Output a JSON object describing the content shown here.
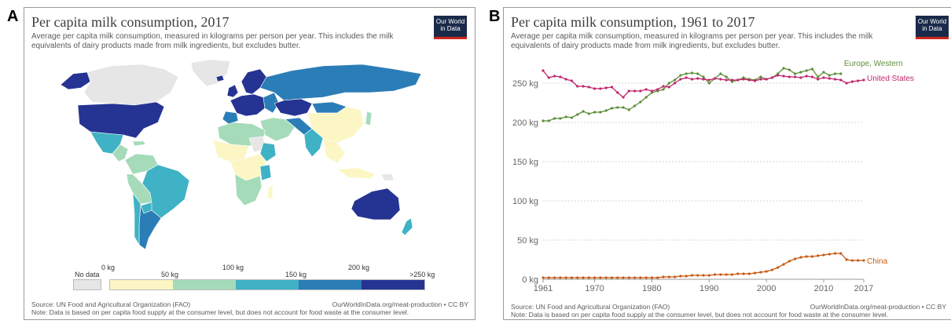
{
  "panel_a": {
    "letter": "A",
    "title": "Per capita milk consumption, 2017",
    "subtitle": "Average per capita milk consumption, measured in kilograms per person per year. This includes the milk equivalents of dairy products made from milk ingredients, but excludes butter.",
    "logo_line1": "Our World",
    "logo_line2": "in Data",
    "source": "Source: UN Food and Agricultural Organization (FAO)",
    "url": "OurWorldInData.org/meat-production • CC BY",
    "note": "Note: Data is based on per capita food supply at the consumer level, but does not account for food waste at the consumer level.",
    "legend": {
      "no_data_label": "No data",
      "bins_top": [
        "0 kg",
        "100 kg",
        "200 kg"
      ],
      "bins_bottom": [
        "50 kg",
        "150 kg",
        ">250 kg"
      ],
      "colors": [
        "#fbf6c4",
        "#a6dbba",
        "#3fb2c5",
        "#2b7db7",
        "#253392"
      ],
      "no_data_color": "#e6e6e6"
    }
  },
  "panel_b": {
    "letter": "B",
    "title": "Per capita milk consumption, 1961 to 2017",
    "subtitle": "Average per capita milk consumption, measured in kilograms per person per year. This includes the milk equivalents of dairy products made from milk ingredients, but excludes butter.",
    "logo_line1": "Our World",
    "logo_line2": "in Data",
    "source": "Source: UN Food and Agricultural Organization (FAO)",
    "url": "OurWorldInData.org/meat-production • CC BY",
    "note": "Note: Data is based on per capita food supply at the consumer level, but does not account for food waste at the consumer level."
  },
  "chart_data": [
    {
      "type": "map",
      "title": "Per capita milk consumption, 2017",
      "legend_bins": [
        "No data",
        "0 kg",
        "50 kg",
        "100 kg",
        "150 kg",
        "200 kg",
        ">250 kg"
      ]
    },
    {
      "type": "line",
      "title": "Per capita milk consumption, 1961 to 2017",
      "ylim": [
        0,
        280
      ],
      "yticks": [
        0,
        50,
        100,
        150,
        200,
        250
      ],
      "ytick_labels": [
        "0 kg",
        "50 kg",
        "100 kg",
        "150 kg",
        "200 kg",
        "250 kg"
      ],
      "xlim": [
        1961,
        2017
      ],
      "xticks": [
        1961,
        1970,
        1980,
        1990,
        2000,
        2010,
        2017
      ],
      "grid": true,
      "series": [
        {
          "name": "Europe, Western",
          "color": "#5d8f3a",
          "x": [
            1961,
            1962,
            1963,
            1964,
            1965,
            1966,
            1967,
            1968,
            1969,
            1970,
            1971,
            1972,
            1973,
            1974,
            1975,
            1976,
            1977,
            1978,
            1979,
            1980,
            1981,
            1982,
            1983,
            1984,
            1985,
            1986,
            1987,
            1988,
            1989,
            1990,
            1991,
            1992,
            1993,
            1994,
            1995,
            1996,
            1997,
            1998,
            1999,
            2000,
            2001,
            2002,
            2003,
            2004,
            2005,
            2006,
            2007,
            2008,
            2009,
            2010,
            2011,
            2012,
            2013
          ],
          "values": [
            202,
            202,
            205,
            205,
            207,
            206,
            210,
            214,
            211,
            213,
            213,
            215,
            218,
            219,
            219,
            216,
            221,
            226,
            232,
            238,
            240,
            242,
            250,
            254,
            260,
            262,
            263,
            262,
            258,
            250,
            256,
            262,
            258,
            252,
            254,
            257,
            255,
            254,
            258,
            255,
            257,
            262,
            269,
            267,
            262,
            264,
            266,
            268,
            258,
            264,
            260,
            262,
            262
          ]
        },
        {
          "name": "United States",
          "color": "#c2266e",
          "x": [
            1961,
            1962,
            1963,
            1964,
            1965,
            1966,
            1967,
            1968,
            1969,
            1970,
            1971,
            1972,
            1973,
            1974,
            1975,
            1976,
            1977,
            1978,
            1979,
            1980,
            1981,
            1982,
            1983,
            1984,
            1985,
            1986,
            1987,
            1988,
            1989,
            1990,
            1991,
            1992,
            1993,
            1994,
            1995,
            1996,
            1997,
            1998,
            1999,
            2000,
            2001,
            2002,
            2003,
            2004,
            2005,
            2006,
            2007,
            2008,
            2009,
            2010,
            2011,
            2012,
            2013,
            2014,
            2015,
            2016,
            2017
          ],
          "values": [
            266,
            257,
            259,
            258,
            255,
            253,
            246,
            246,
            245,
            243,
            243,
            244,
            245,
            238,
            232,
            240,
            240,
            240,
            242,
            240,
            242,
            246,
            245,
            250,
            255,
            257,
            255,
            256,
            255,
            254,
            256,
            255,
            254,
            254,
            254,
            255,
            254,
            253,
            255,
            255,
            257,
            260,
            259,
            258,
            258,
            257,
            259,
            258,
            255,
            257,
            256,
            255,
            254,
            250,
            252,
            253,
            254
          ]
        },
        {
          "name": "China",
          "color": "#c75b14",
          "x": [
            1961,
            1962,
            1963,
            1964,
            1965,
            1966,
            1967,
            1968,
            1969,
            1970,
            1971,
            1972,
            1973,
            1974,
            1975,
            1976,
            1977,
            1978,
            1979,
            1980,
            1981,
            1982,
            1983,
            1984,
            1985,
            1986,
            1987,
            1988,
            1989,
            1990,
            1991,
            1992,
            1993,
            1994,
            1995,
            1996,
            1997,
            1998,
            1999,
            2000,
            2001,
            2002,
            2003,
            2004,
            2005,
            2006,
            2007,
            2008,
            2009,
            2010,
            2011,
            2012,
            2013,
            2014,
            2015,
            2016,
            2017
          ],
          "values": [
            2,
            2,
            2,
            2,
            2,
            2,
            2,
            2,
            2,
            2,
            2,
            2,
            2,
            2,
            2,
            2,
            2,
            2,
            2,
            2,
            2,
            3,
            3,
            3,
            4,
            4,
            5,
            5,
            5,
            5,
            6,
            6,
            6,
            6,
            7,
            7,
            7,
            8,
            9,
            10,
            12,
            15,
            19,
            23,
            26,
            28,
            29,
            29,
            30,
            31,
            32,
            33,
            33,
            25,
            24,
            24,
            24
          ]
        }
      ]
    }
  ]
}
